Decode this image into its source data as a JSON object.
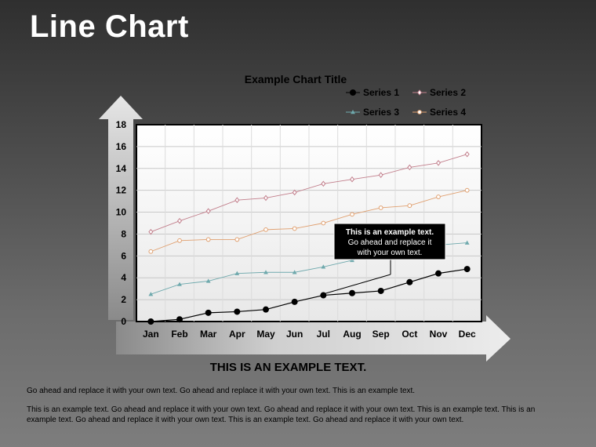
{
  "slide": {
    "title": "Line Chart",
    "callout": [
      "This is an example text.",
      "Go ahead and replace it",
      "with your own text."
    ],
    "subheading": "THIS IS AN EXAMPLE TEXT.",
    "paragraph1": "Go ahead and replace it with your own text. Go ahead and replace it with your own text. This is an example text.",
    "paragraph2": "This is an example text. Go ahead and replace it with your own text. Go ahead and replace it with your own text. This is an example text. This is an example text. Go ahead and replace it with your own text. This is an example text. Go ahead and replace it with your own text."
  },
  "colors": {
    "series1": "#000000",
    "series2": "#c27f8c",
    "series3": "#6fa9ad",
    "series4": "#e0a070",
    "arrow": "#e0e0e0",
    "callout_bg": "#000000"
  },
  "chart_data": {
    "type": "line",
    "title": "Example Chart Title",
    "categories": [
      "Jan",
      "Feb",
      "Mar",
      "Apr",
      "May",
      "Jun",
      "Jul",
      "Aug",
      "Sep",
      "Oct",
      "Nov",
      "Dec"
    ],
    "ylim": [
      0,
      18
    ],
    "yticks": [
      0,
      2,
      4,
      6,
      8,
      10,
      12,
      14,
      16,
      18
    ],
    "grid": true,
    "legend": "top-right",
    "series": [
      {
        "name": "Series 1",
        "marker": "circle",
        "values": [
          0,
          0.2,
          0.8,
          0.9,
          1.1,
          1.8,
          2.4,
          2.6,
          2.8,
          3.6,
          4.4,
          4.8
        ]
      },
      {
        "name": "Series 2",
        "marker": "diamond",
        "values": [
          8.2,
          9.2,
          10.1,
          11.1,
          11.3,
          11.8,
          12.6,
          13.0,
          13.4,
          14.1,
          14.5,
          15.3
        ]
      },
      {
        "name": "Series 3",
        "marker": "triangle",
        "values": [
          2.5,
          3.4,
          3.7,
          4.4,
          4.5,
          4.5,
          5.0,
          5.6,
          6.2,
          6.6,
          7.0,
          7.2
        ]
      },
      {
        "name": "Series 4",
        "marker": "circle",
        "values": [
          6.4,
          7.4,
          7.5,
          7.5,
          8.4,
          8.5,
          9.0,
          9.8,
          10.4,
          10.6,
          11.4,
          12.0
        ]
      }
    ]
  }
}
